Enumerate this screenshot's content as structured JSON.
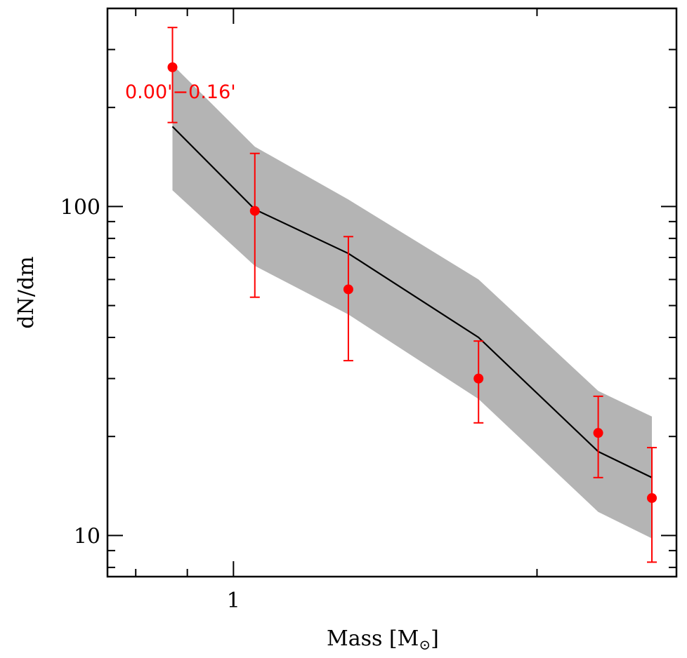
{
  "chart_data": {
    "type": "line",
    "xlabel": "Mass [M",
    "xlabel_symbol": "⊙",
    "xlabel_suffix": "]",
    "ylabel": "dN/dm",
    "xscale": "log",
    "yscale": "log",
    "xlim": [
      0.75,
      2.75
    ],
    "ylim": [
      7.5,
      400
    ],
    "x_tick_labels": [
      {
        "value": 1,
        "label": "1"
      }
    ],
    "y_tick_labels": [
      {
        "value": 10,
        "label": "10"
      },
      {
        "value": 100,
        "label": "100"
      }
    ],
    "annotation": {
      "text": "0.00'−0.16'",
      "color": "#ff0000"
    },
    "model": {
      "x": [
        0.87,
        1.05,
        1.3,
        1.75,
        2.3,
        2.6
      ],
      "y": [
        175,
        98,
        72,
        40,
        18,
        15
      ],
      "lower": [
        112,
        66,
        47,
        26,
        11.8,
        9.8
      ],
      "upper": [
        270,
        152,
        105,
        60,
        27.5,
        23
      ],
      "line_color": "#000000",
      "band_color": "#b4b4b4"
    },
    "points": {
      "x": [
        0.87,
        1.05,
        1.3,
        1.75,
        2.3,
        2.6
      ],
      "y": [
        265,
        97,
        56,
        30,
        20.5,
        13
      ],
      "yerr_low": [
        180,
        53,
        34,
        22,
        15,
        8.3
      ],
      "yerr_high": [
        350,
        145,
        81,
        39,
        26.5,
        18.5
      ],
      "color": "#ff0000"
    }
  }
}
